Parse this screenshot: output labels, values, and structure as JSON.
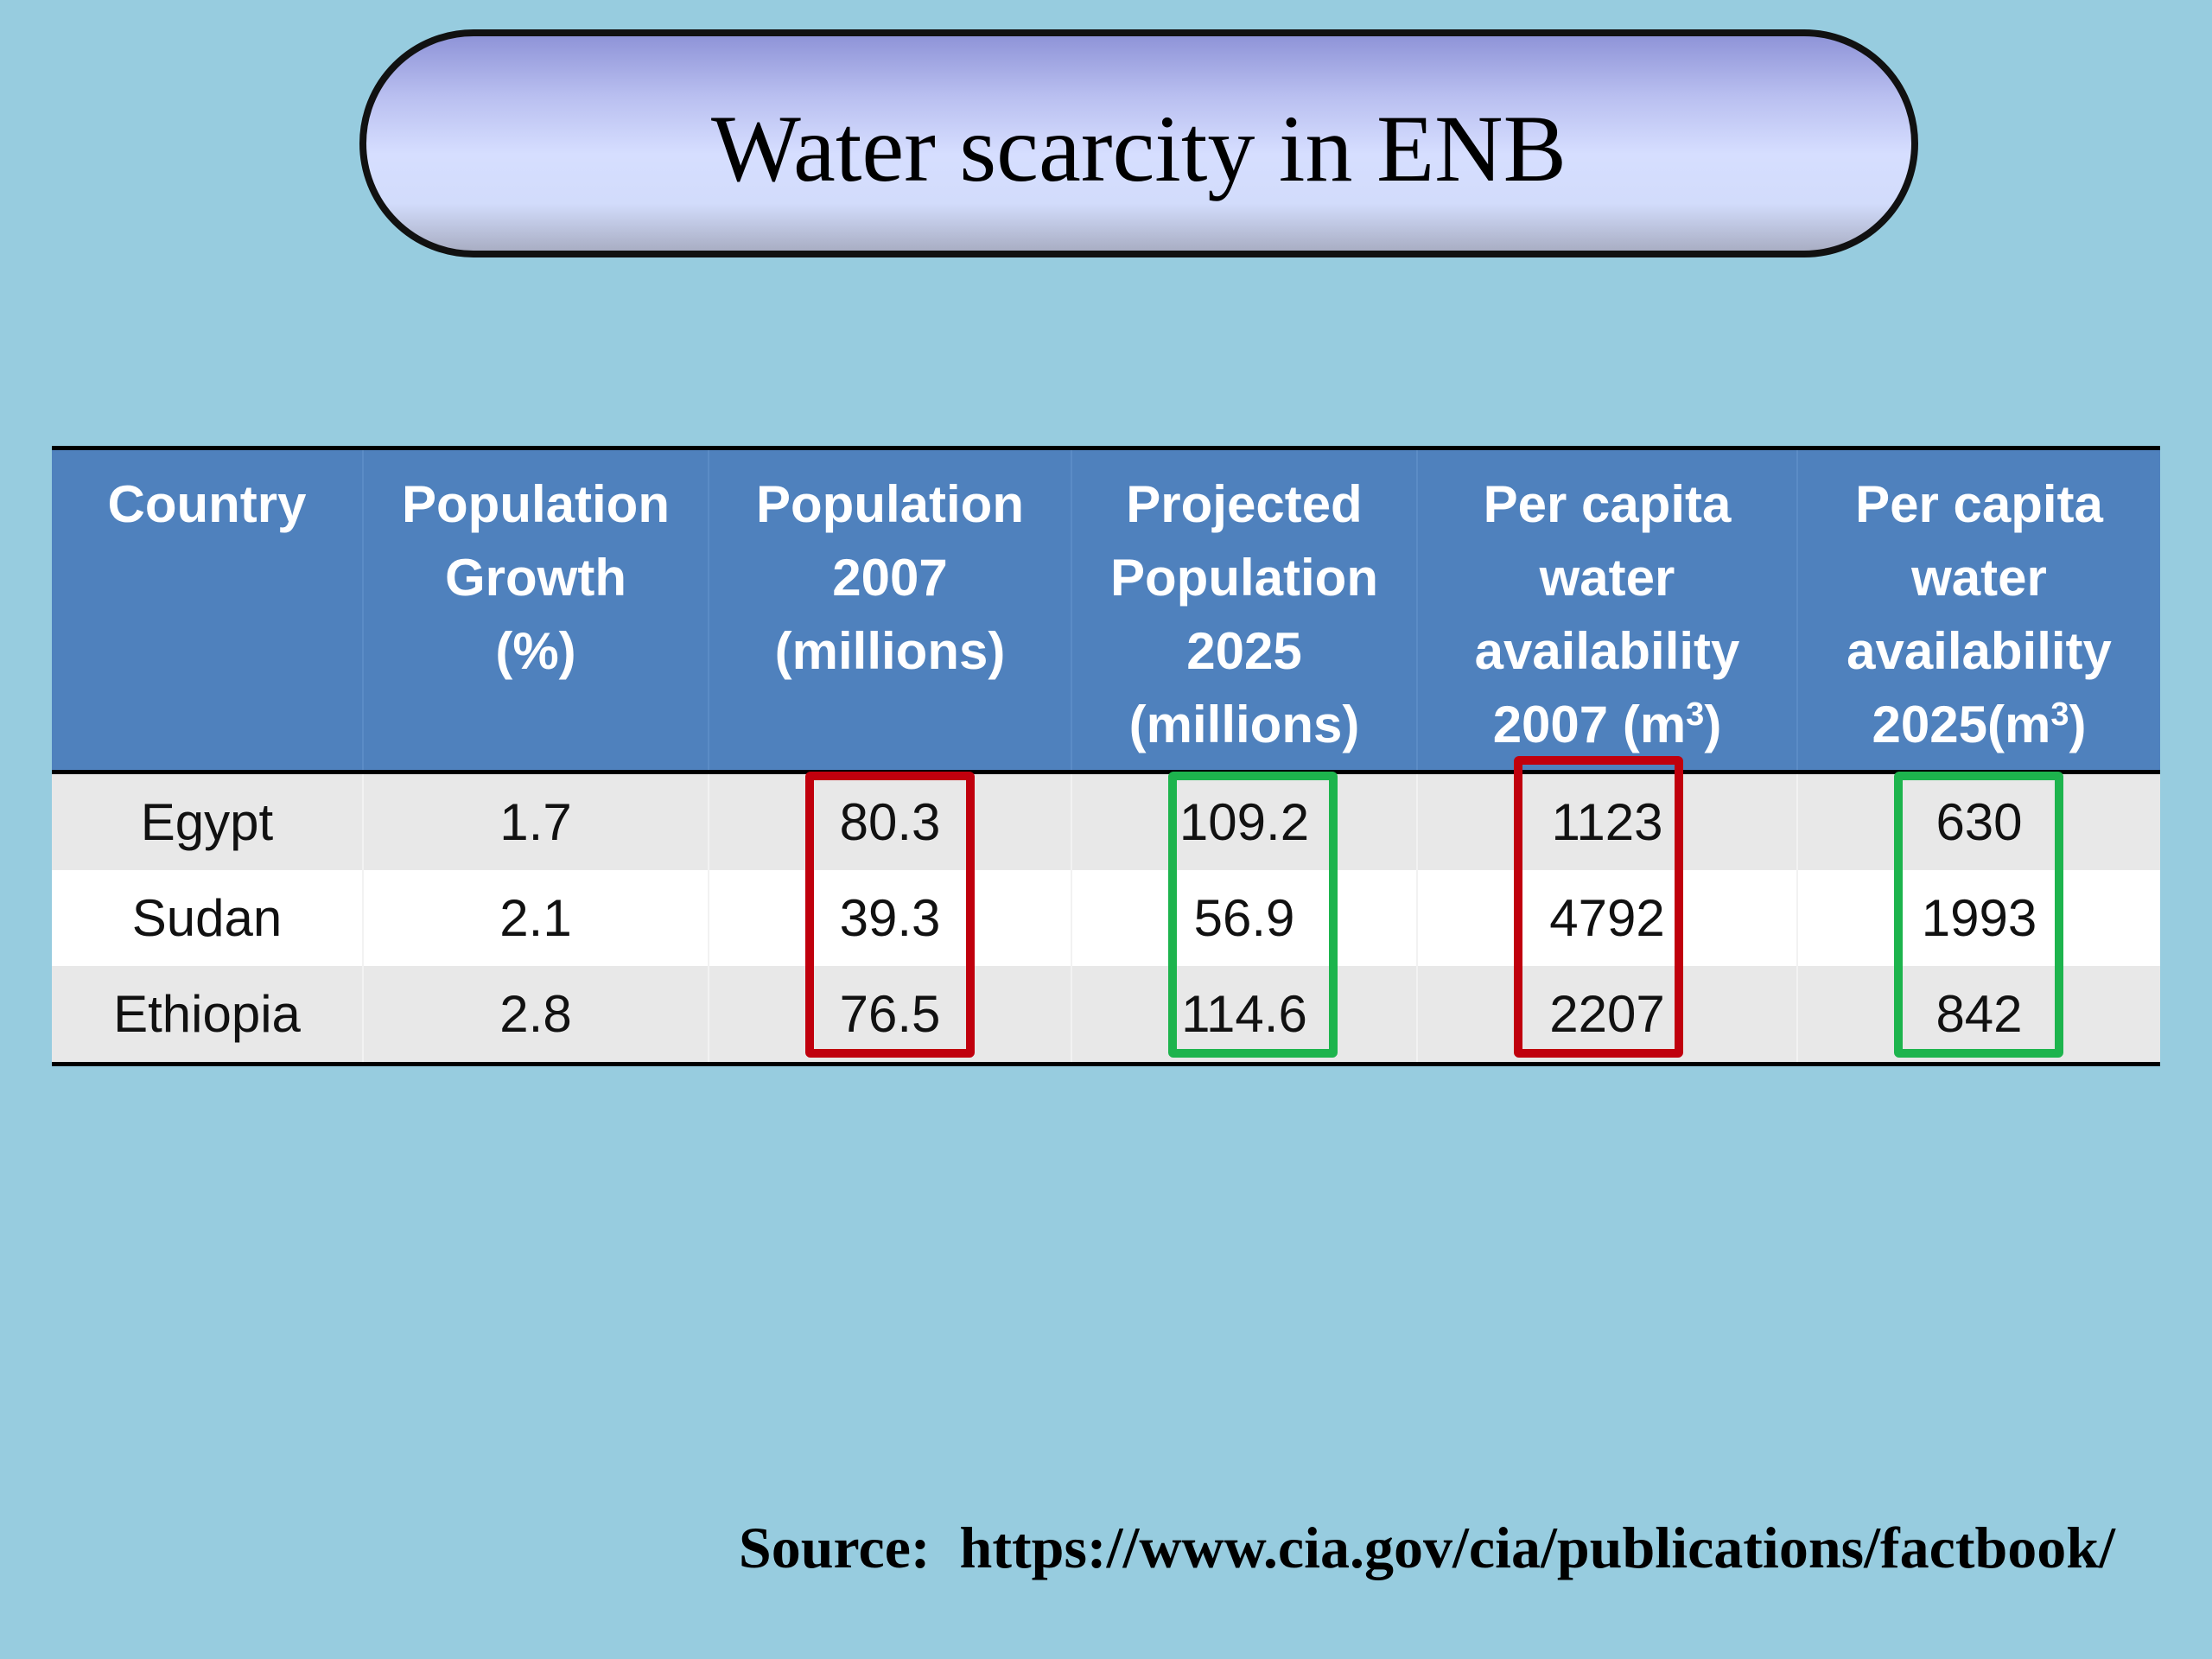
{
  "title": "Water scarcity in ENB",
  "table": {
    "headers": [
      [
        "Country"
      ],
      [
        "Population",
        "Growth",
        "(%)"
      ],
      [
        "Population",
        "2007",
        "(millions)"
      ],
      [
        "Projected",
        "Population",
        "2025",
        "(millions)"
      ],
      [
        "Per capita",
        "water",
        "availability",
        "2007 (m"
      ],
      [
        "Per capita",
        "water",
        "availability",
        "2025(m"
      ]
    ],
    "superscript": "3",
    "unit_close": ")",
    "rows": [
      [
        "Egypt",
        "1.7",
        "80.3",
        "109.2",
        "1123",
        "630"
      ],
      [
        "Sudan",
        "2.1",
        "39.3",
        "56.9",
        "4792",
        "1993"
      ],
      [
        "Ethiopia",
        "2.8",
        "76.5",
        "114.6",
        "2207",
        "842"
      ]
    ]
  },
  "highlights": [
    {
      "column": "Population 2007 (millions)",
      "color": "#c0000d"
    },
    {
      "column": "Projected Population 2025 (millions)",
      "color": "#1db44d"
    },
    {
      "column": "Per capita water availability 2007",
      "color": "#c0000d"
    },
    {
      "column": "Per capita water availability 2025",
      "color": "#1db44d"
    }
  ],
  "colors": {
    "background": "#97ccdf",
    "header": "#4f81bd",
    "row_shade": "#e8e8e8",
    "highlight_red": "#c0000d",
    "highlight_green": "#1db44d"
  },
  "source": {
    "label": "Source:",
    "url": "https://www.cia.gov/cia/publications/factbook/"
  }
}
